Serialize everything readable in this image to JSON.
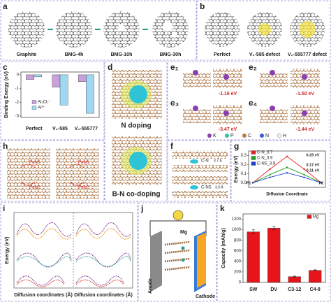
{
  "panel_letters": [
    "a",
    "b",
    "c",
    "d",
    "e₁",
    "e₂",
    "e₃",
    "e₄",
    "h",
    "f",
    "g",
    "i",
    "j",
    "k"
  ],
  "panel_a": {
    "labels": [
      "Graphite",
      "BMG-4h",
      "BMG-10h",
      "BMG-30h"
    ]
  },
  "panel_b": {
    "labels": [
      "Perfect",
      "V₂-585 defect",
      "V₂-555777 defect"
    ]
  },
  "panel_d": {
    "labels": [
      "N doping",
      "B-N co-doping"
    ]
  },
  "panel_e": {
    "energies": [
      "-1.16 eV",
      "-1.50 eV",
      "-3.47 eV",
      "-1.44 eV"
    ],
    "legend": [
      "K",
      "P",
      "C",
      "N",
      "H"
    ]
  },
  "panel_f": {
    "labels": [
      "C-N",
      "3.7 Å",
      "C-NS",
      "3.9 Å"
    ]
  },
  "panel_h": {
    "labels": [
      "Path1",
      "Path2",
      "Path1",
      "Path2"
    ]
  },
  "panel_i": {
    "y_label": "Energy (eV)",
    "x_labels": [
      "Diffusion coordinates (Å)",
      "Diffusion coordinates (Å)"
    ]
  },
  "panel_j": {
    "labels": [
      "Mg",
      "Anode",
      "Cathode"
    ]
  },
  "chart_data": [
    {
      "type": "bar",
      "y_label": "Binding Energy (eV)",
      "categories": [
        "Perfect",
        "V₂-585",
        "V₂-555777"
      ],
      "series": [
        {
          "name": "Al₂Cl₇⁻",
          "color": "#c9a0dc",
          "values": [
            -0.35,
            -0.9,
            -0.5
          ]
        },
        {
          "name": "Al³⁺",
          "color": "#9fd8f0",
          "values": [
            -0.15,
            -2.2,
            -2.8
          ]
        }
      ],
      "ylim": [
        -3.1,
        0.2
      ],
      "yticks": [
        0,
        -1,
        -2,
        -3
      ]
    },
    {
      "type": "line",
      "y_label": "Energy (eV)",
      "x_label": "Diffusion Coordinate",
      "categories": [
        null,
        null,
        null,
        null,
        null
      ],
      "series": [
        {
          "name": "C-N_3.7",
          "color": "#e02020",
          "values": [
            0,
            0.15,
            0.29,
            0.15,
            0
          ]
        },
        {
          "name": "C-N_3.9",
          "color": "#20a020",
          "values": [
            0,
            0.09,
            0.17,
            0.09,
            0
          ]
        },
        {
          "name": "C-NS_3.9",
          "color": "#2040d0",
          "values": [
            0,
            0.06,
            0.11,
            0.06,
            0
          ]
        }
      ],
      "annotations": [
        "0.29 eV",
        "0.17 eV",
        "0.11 eV",
        "P1",
        "P2"
      ],
      "ylim": [
        -0.05,
        0.35
      ],
      "yticks": [
        {
          "value": 0,
          "label": "0.0"
        },
        {
          "value": 0.1,
          "label": "0.1"
        },
        {
          "value": 0.2,
          "label": "0.2"
        },
        {
          "value": 0.3,
          "label": "0.3"
        }
      ]
    },
    {
      "type": "bar",
      "y_label": "Capacity (mAh/g)",
      "categories": [
        "SW",
        "DV",
        "C3-12",
        "C4-8"
      ],
      "series": [
        {
          "name": "Mg",
          "color": "#e8141c",
          "values": [
            960,
            1030,
            110,
            230
          ],
          "errors": [
            40,
            30,
            10,
            10
          ]
        }
      ],
      "ylim": [
        0,
        1300
      ],
      "yticks": [
        0,
        200,
        400,
        600,
        800,
        1000,
        1200
      ]
    }
  ]
}
